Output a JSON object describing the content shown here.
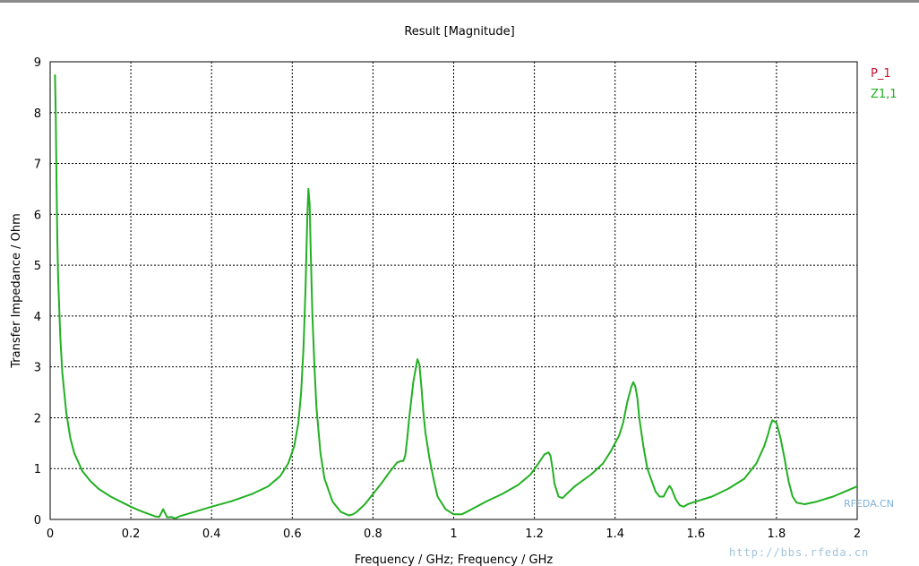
{
  "chart_data": {
    "type": "line",
    "title": "Result [Magnitude]",
    "xlabel": "Frequency / GHz; Frequency / GHz",
    "ylabel": "Transfer Impedance / Ohm",
    "xlim": [
      0,
      2
    ],
    "ylim": [
      0,
      9
    ],
    "xticks": [
      "0",
      "0.2",
      "0.4",
      "0.6",
      "0.8",
      "1",
      "1.2",
      "1.4",
      "1.6",
      "1.8",
      "2"
    ],
    "yticks": [
      "0",
      "1",
      "2",
      "3",
      "4",
      "5",
      "6",
      "7",
      "8",
      "9"
    ],
    "grid": true,
    "legend_position": "top-right",
    "legend": [
      {
        "name": "P_1",
        "color": "#c8102e"
      },
      {
        "name": "Z1,1",
        "color": "#22b022"
      }
    ],
    "series": [
      {
        "name": "Z1,1",
        "color": "#22b022",
        "x": [
          0.012,
          0.014,
          0.016,
          0.018,
          0.02,
          0.025,
          0.03,
          0.04,
          0.05,
          0.06,
          0.08,
          0.1,
          0.12,
          0.15,
          0.18,
          0.2,
          0.22,
          0.24,
          0.26,
          0.27,
          0.275,
          0.28,
          0.285,
          0.29,
          0.3,
          0.31,
          0.32,
          0.35,
          0.4,
          0.45,
          0.5,
          0.54,
          0.57,
          0.59,
          0.605,
          0.615,
          0.622,
          0.628,
          0.633,
          0.637,
          0.64,
          0.643,
          0.646,
          0.65,
          0.655,
          0.66,
          0.67,
          0.68,
          0.7,
          0.72,
          0.74,
          0.75,
          0.76,
          0.78,
          0.8,
          0.82,
          0.84,
          0.86,
          0.87,
          0.875,
          0.88,
          0.885,
          0.89,
          0.9,
          0.91,
          0.915,
          0.92,
          0.925,
          0.93,
          0.94,
          0.95,
          0.96,
          0.98,
          1.0,
          1.02,
          1.04,
          1.08,
          1.12,
          1.16,
          1.19,
          1.21,
          1.225,
          1.235,
          1.24,
          1.245,
          1.25,
          1.26,
          1.27,
          1.28,
          1.3,
          1.34,
          1.37,
          1.39,
          1.41,
          1.42,
          1.43,
          1.44,
          1.445,
          1.45,
          1.455,
          1.46,
          1.47,
          1.48,
          1.5,
          1.51,
          1.52,
          1.53,
          1.535,
          1.54,
          1.55,
          1.56,
          1.57,
          1.58,
          1.6,
          1.64,
          1.68,
          1.72,
          1.75,
          1.77,
          1.78,
          1.785,
          1.79,
          1.8,
          1.81,
          1.82,
          1.83,
          1.84,
          1.85,
          1.87,
          1.9,
          1.94,
          1.97,
          2.0
        ],
        "y": [
          8.75,
          7.9,
          6.5,
          5.4,
          4.7,
          3.6,
          2.9,
          2.1,
          1.6,
          1.3,
          0.95,
          0.75,
          0.6,
          0.45,
          0.33,
          0.25,
          0.18,
          0.12,
          0.06,
          0.05,
          0.12,
          0.2,
          0.12,
          0.04,
          0.05,
          0.02,
          0.06,
          0.13,
          0.25,
          0.36,
          0.5,
          0.65,
          0.85,
          1.1,
          1.45,
          1.9,
          2.5,
          3.4,
          4.6,
          5.9,
          6.5,
          6.2,
          5.2,
          4.0,
          3.0,
          2.2,
          1.3,
          0.8,
          0.35,
          0.15,
          0.08,
          0.1,
          0.15,
          0.3,
          0.5,
          0.7,
          0.92,
          1.12,
          1.15,
          1.15,
          1.25,
          1.6,
          2.0,
          2.7,
          3.15,
          3.05,
          2.6,
          2.1,
          1.7,
          1.2,
          0.8,
          0.45,
          0.2,
          0.1,
          0.1,
          0.18,
          0.35,
          0.5,
          0.68,
          0.88,
          1.1,
          1.28,
          1.32,
          1.25,
          1.0,
          0.7,
          0.45,
          0.42,
          0.5,
          0.65,
          0.88,
          1.1,
          1.35,
          1.65,
          1.9,
          2.3,
          2.6,
          2.7,
          2.62,
          2.4,
          2.0,
          1.45,
          1.0,
          0.55,
          0.45,
          0.45,
          0.6,
          0.66,
          0.6,
          0.4,
          0.28,
          0.25,
          0.3,
          0.35,
          0.45,
          0.6,
          0.8,
          1.1,
          1.45,
          1.7,
          1.85,
          1.95,
          1.9,
          1.6,
          1.2,
          0.75,
          0.45,
          0.33,
          0.3,
          0.35,
          0.45,
          0.55,
          0.65
        ]
      }
    ]
  },
  "watermark": {
    "brand": "RFEDA.CN",
    "site": "http://bbs.rfeda.cn"
  }
}
